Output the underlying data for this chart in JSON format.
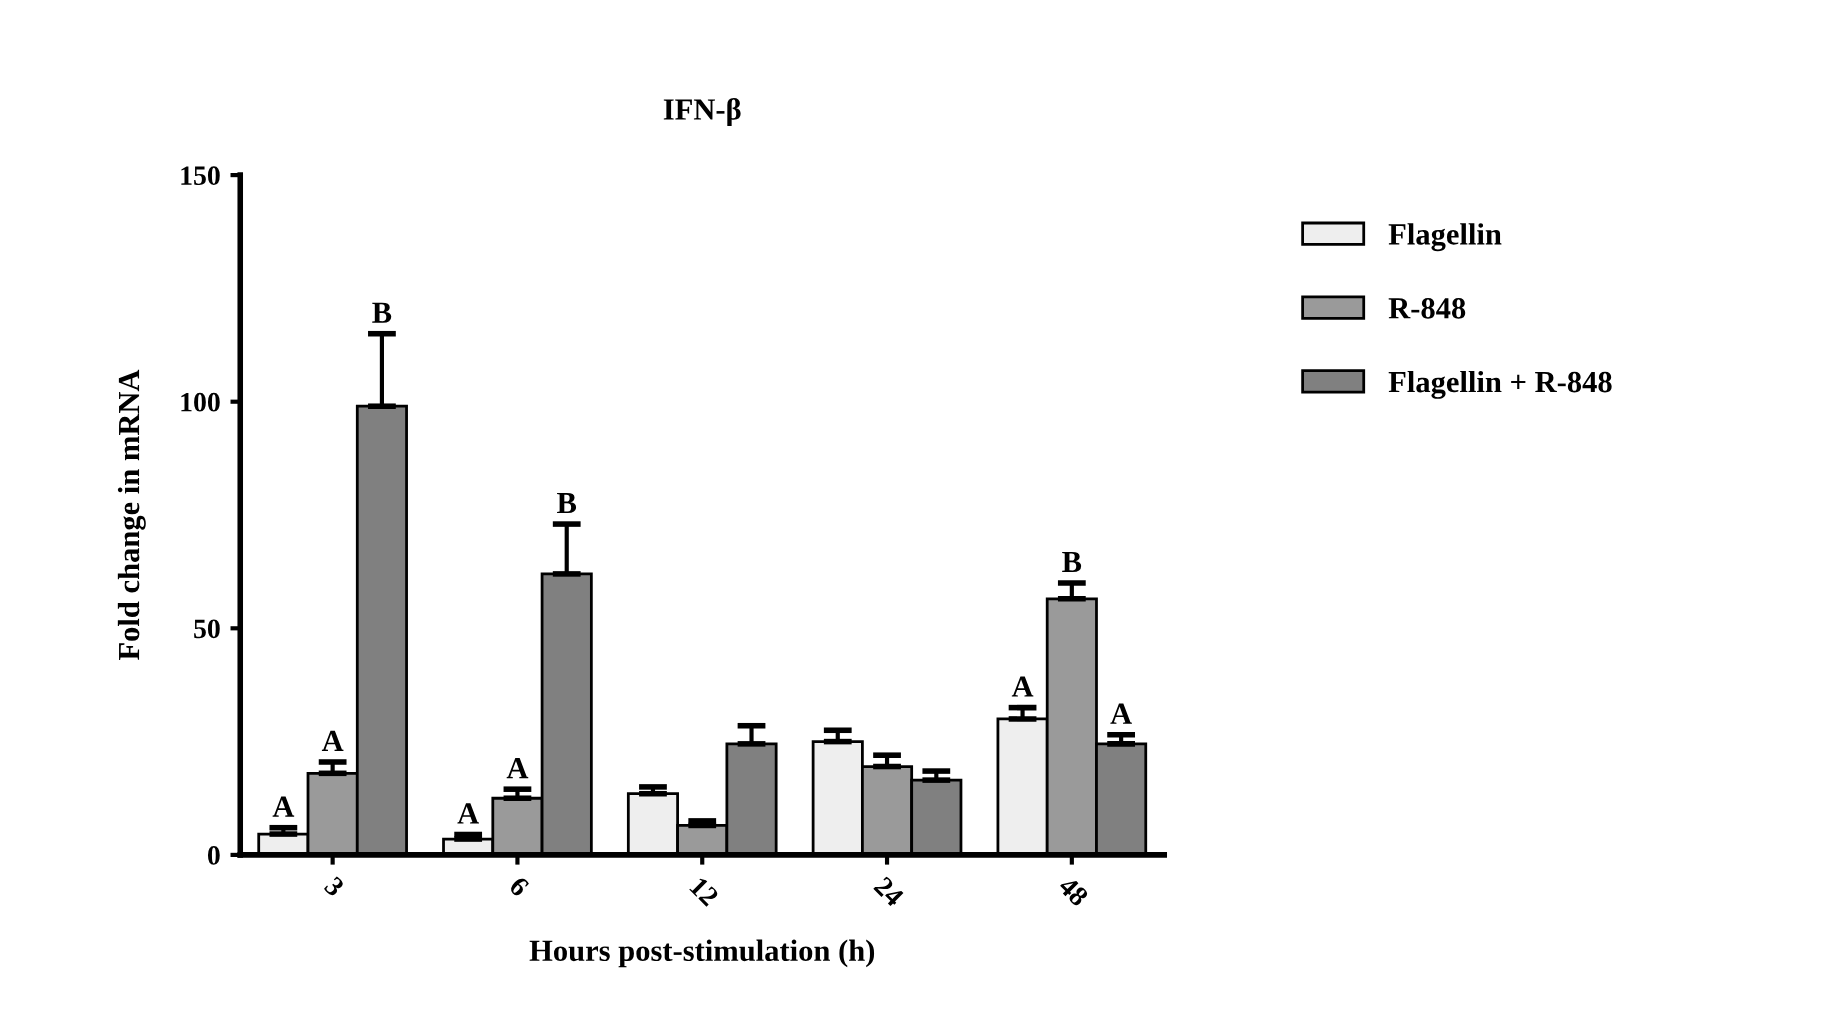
{
  "chart_data": {
    "type": "bar",
    "title": "IFN-β",
    "xlabel": "Hours post-stimulation (h)",
    "ylabel": "Fold change in mRNA",
    "categories": [
      "3",
      "6",
      "12",
      "24",
      "48"
    ],
    "series": [
      {
        "name": "Flagellin",
        "color": "#eeeeee",
        "values": [
          4.6,
          3.5,
          13.5,
          25,
          30
        ],
        "errors": [
          [
            4.6,
            6
          ],
          [
            3.5,
            4.5
          ],
          [
            13.5,
            15
          ],
          [
            25,
            27.5
          ],
          [
            30,
            32.5
          ]
        ],
        "value_labels": [
          "A",
          "A",
          null,
          null,
          "A"
        ]
      },
      {
        "name": "R-848",
        "color": "#9a9a9a",
        "values": [
          18,
          12.5,
          6.5,
          19.5,
          56.5
        ],
        "errors": [
          [
            18,
            20.5
          ],
          [
            12.5,
            14.5
          ],
          [
            6.5,
            7.5
          ],
          [
            19.5,
            22
          ],
          [
            56.5,
            60
          ]
        ],
        "value_labels": [
          "A",
          "A",
          null,
          null,
          "B"
        ]
      },
      {
        "name": "Flagellin + R-848",
        "color": "#808080",
        "values": [
          99,
          62,
          24.5,
          16.5,
          24.5
        ],
        "errors": [
          [
            99,
            115
          ],
          [
            62,
            73
          ],
          [
            24.5,
            28.5
          ],
          [
            16.5,
            18.5
          ],
          [
            24.5,
            26.5
          ]
        ],
        "value_labels": [
          "B",
          "B",
          null,
          null,
          "A"
        ]
      }
    ],
    "ylim": [
      0,
      150
    ],
    "yticks": [
      0,
      50,
      100,
      150
    ],
    "grid": false,
    "legend": "right"
  }
}
